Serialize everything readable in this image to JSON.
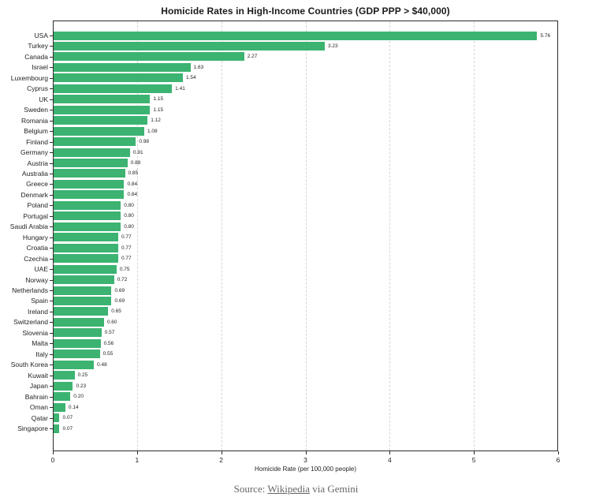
{
  "title": "Homicide Rates in High-Income Countries (GDP PPP > $40,000)",
  "chart_data": {
    "type": "bar",
    "orientation": "horizontal",
    "title": "Homicide Rates in High-Income Countries (GDP PPP > $40,000)",
    "xlabel": "Homicide Rate (per 100,000 people)",
    "ylabel": "",
    "xlim": [
      0,
      6
    ],
    "xticks": [
      0,
      1,
      2,
      3,
      4,
      5,
      6
    ],
    "xtick_labels": [
      "0",
      "1",
      "2",
      "3",
      "4",
      "5",
      "6"
    ],
    "grid": "vertical-dashed",
    "legend": "none",
    "value_labels": true,
    "bar_color": "#3cb371",
    "categories": [
      "USA",
      "Turkey",
      "Canada",
      "Israel",
      "Luxembourg",
      "Cyprus",
      "UK",
      "Sweden",
      "Romania",
      "Belgium",
      "Finland",
      "Germany",
      "Austria",
      "Australia",
      "Greece",
      "Denmark",
      "Poland",
      "Portugal",
      "Saudi Arabia",
      "Hungary",
      "Croatia",
      "Czechia",
      "UAE",
      "Norway",
      "Netherlands",
      "Spain",
      "Ireland",
      "Switzerland",
      "Slovenia",
      "Malta",
      "Italy",
      "South Korea",
      "Kuwait",
      "Japan",
      "Bahrain",
      "Oman",
      "Qatar",
      "Singapore"
    ],
    "values": [
      5.76,
      3.23,
      2.27,
      1.63,
      1.54,
      1.41,
      1.15,
      1.15,
      1.12,
      1.08,
      0.98,
      0.91,
      0.88,
      0.85,
      0.84,
      0.84,
      0.8,
      0.8,
      0.8,
      0.77,
      0.77,
      0.77,
      0.75,
      0.72,
      0.69,
      0.69,
      0.65,
      0.6,
      0.57,
      0.56,
      0.55,
      0.48,
      0.25,
      0.23,
      0.2,
      0.14,
      0.07,
      0.07
    ]
  },
  "footer": {
    "source_prefix": "Source: ",
    "source_link": "Wikipedia",
    "source_suffix": " via Gemini"
  },
  "colors": {
    "bar": "#3cb371",
    "grid": "#d6d6d6",
    "axis": "#2b2b2b",
    "text": "#1f1f1f",
    "footer_text": "#666666"
  }
}
